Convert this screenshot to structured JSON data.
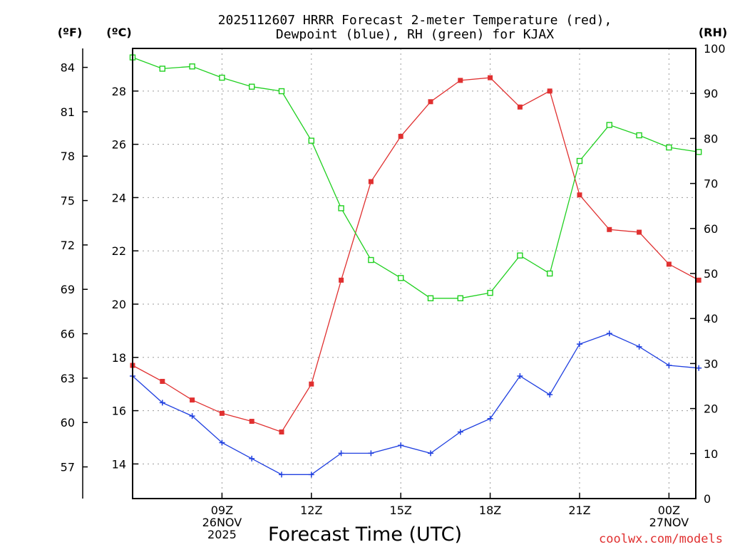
{
  "chart_data": {
    "type": "line",
    "title_lines": [
      "2025112607 HRRR Forecast 2-meter Temperature (red),",
      "Dewpoint (blue), RH (green) for KJAX"
    ],
    "xlabel": "Forecast Time (UTC)",
    "credit": "coolwx.com/models",
    "units": {
      "fahrenheit": "(ºF)",
      "celsius": "(ºC)",
      "rh": "(RH)"
    },
    "x_hours": [
      6,
      7,
      8,
      9,
      10,
      11,
      12,
      13,
      14,
      15,
      16,
      17,
      18,
      19,
      20,
      21,
      22,
      23,
      24,
      25
    ],
    "xlim": [
      6,
      24.9
    ],
    "x_ticks": [
      {
        "hour": 9,
        "lines": [
          "09Z",
          "26NOV",
          "2025"
        ]
      },
      {
        "hour": 12,
        "lines": [
          "12Z"
        ]
      },
      {
        "hour": 15,
        "lines": [
          "15Z"
        ]
      },
      {
        "hour": 18,
        "lines": [
          "18Z"
        ]
      },
      {
        "hour": 21,
        "lines": [
          "21Z"
        ]
      },
      {
        "hour": 24,
        "lines": [
          "00Z",
          "27NOV"
        ]
      }
    ],
    "celsius_axis": {
      "ylim": [
        12.7,
        29.6
      ],
      "ticks": [
        14,
        16,
        18,
        20,
        22,
        24,
        26,
        28
      ]
    },
    "fahrenheit_axis": {
      "ticks": [
        57,
        60,
        63,
        66,
        69,
        72,
        75,
        78,
        81,
        84
      ]
    },
    "rh_axis": {
      "ylim": [
        0,
        100
      ],
      "ticks": [
        0,
        10,
        20,
        30,
        40,
        50,
        60,
        70,
        80,
        90,
        100
      ]
    },
    "series": [
      {
        "name": "2-meter Temperature",
        "axis": "celsius",
        "color": "#e03030",
        "marker": "filled-square",
        "values": [
          17.7,
          17.1,
          16.4,
          15.9,
          15.6,
          15.2,
          17.0,
          20.9,
          24.6,
          26.3,
          27.6,
          28.4,
          28.5,
          27.4,
          28.0,
          24.1,
          22.8,
          22.7,
          21.5,
          20.9
        ]
      },
      {
        "name": "Dewpoint",
        "axis": "celsius",
        "color": "#2040e0",
        "marker": "plus",
        "values": [
          17.3,
          16.3,
          15.8,
          14.8,
          14.2,
          13.6,
          13.6,
          14.4,
          14.4,
          14.7,
          14.4,
          15.2,
          15.7,
          17.3,
          16.6,
          18.5,
          18.9,
          18.4,
          17.7,
          17.6
        ]
      },
      {
        "name": "RH",
        "axis": "rh",
        "color": "#20d020",
        "marker": "open-square",
        "values": [
          98,
          95.5,
          96,
          93.5,
          91.5,
          90.5,
          79.5,
          64.5,
          53,
          49,
          44.5,
          44.5,
          45.7,
          54,
          50,
          75,
          83,
          80.7,
          78,
          77
        ]
      }
    ]
  }
}
